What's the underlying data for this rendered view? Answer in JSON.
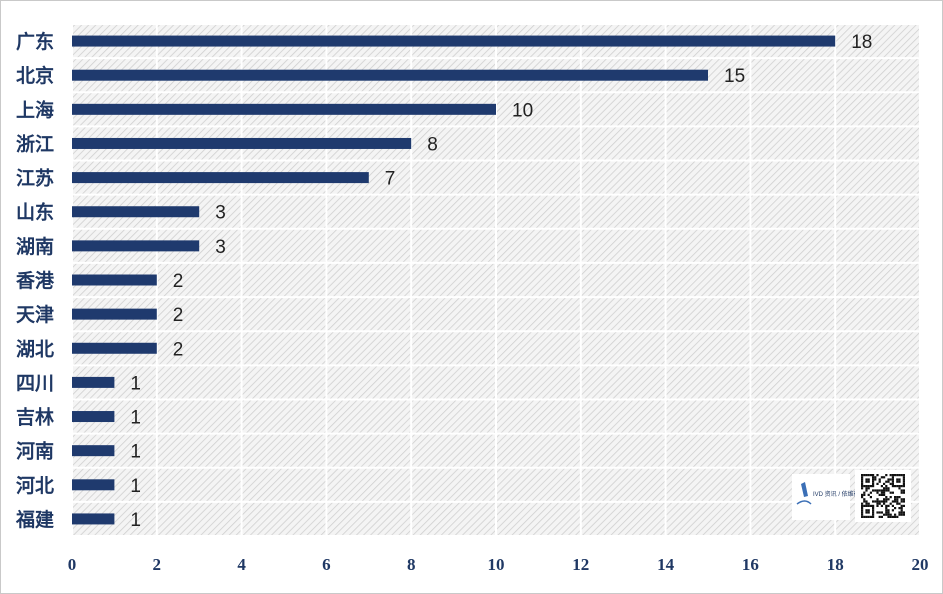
{
  "chart_data": {
    "type": "bar",
    "orientation": "horizontal",
    "categories": [
      "广东",
      "北京",
      "上海",
      "浙江",
      "江苏",
      "山东",
      "湖南",
      "香港",
      "天津",
      "湖北",
      "四川",
      "吉林",
      "河南",
      "河北",
      "福建"
    ],
    "values": [
      18,
      15,
      10,
      8,
      7,
      3,
      3,
      2,
      2,
      2,
      1,
      1,
      1,
      1,
      1
    ],
    "xlim": [
      0,
      20
    ],
    "xticks": [
      0,
      2,
      4,
      6,
      8,
      10,
      12,
      14,
      16,
      18,
      20
    ],
    "grid": true,
    "legend": "none",
    "bar_color": "#1f3a6e",
    "plot_background": "hatched light gray"
  },
  "watermark": {
    "logo_text": "IVD 资讯 / 依维德资讯",
    "qr_code": "qr-code"
  }
}
